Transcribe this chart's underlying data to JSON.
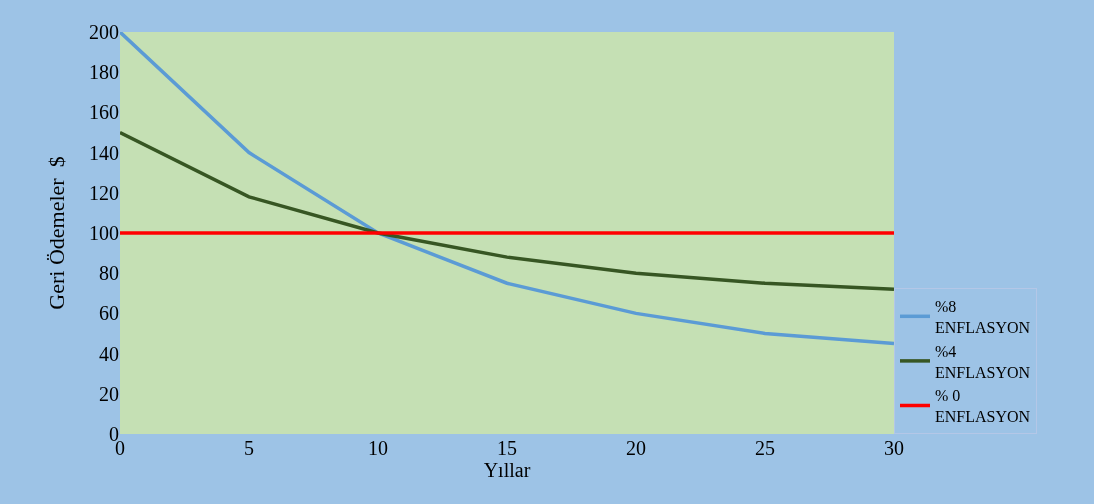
{
  "chart_data": {
    "type": "line",
    "xlabel": "Yıllar",
    "ylabel": "Geri Ödemeler  $",
    "x": [
      0,
      5,
      10,
      15,
      20,
      25,
      30
    ],
    "series": [
      {
        "name": "%8 ENFLASYON",
        "color": "#5b9bd5",
        "values": [
          200,
          140,
          100,
          75,
          60,
          50,
          45
        ]
      },
      {
        "name": "%4 ENFLASYON",
        "color": "#375623",
        "values": [
          150,
          118,
          100,
          88,
          80,
          75,
          72
        ]
      },
      {
        "name": "% 0 ENFLASYON",
        "color": "#ff0000",
        "values": [
          100,
          100,
          100,
          100,
          100,
          100,
          100
        ]
      }
    ],
    "xlim": [
      0,
      30
    ],
    "xticks": [
      0,
      5,
      10,
      15,
      20,
      25,
      30
    ],
    "ylim": [
      0,
      200
    ],
    "yticks": [
      0,
      20,
      40,
      60,
      80,
      100,
      120,
      140,
      160,
      180,
      200
    ],
    "grid": false,
    "legend": "bottom right",
    "marker": "none",
    "line_style": "solid"
  }
}
